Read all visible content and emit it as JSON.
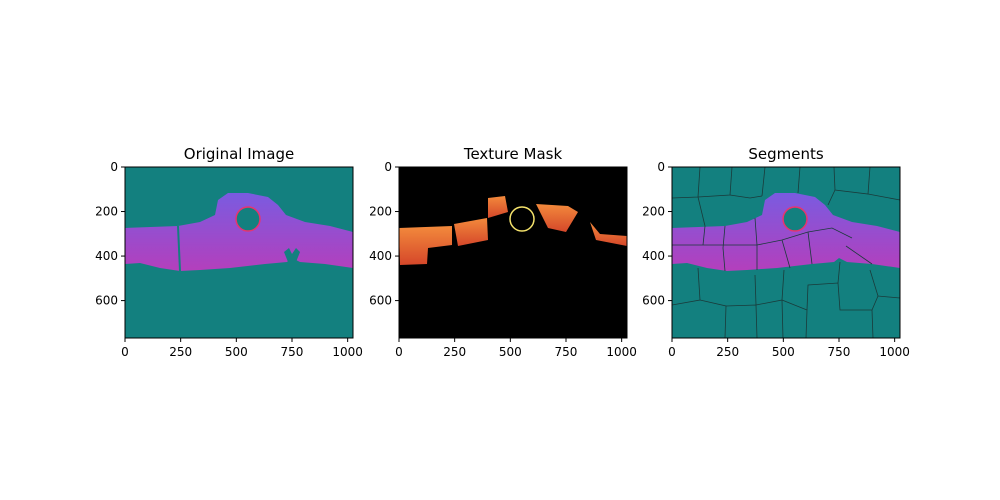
{
  "figure": {
    "background": "#ffffff",
    "panels": [
      {
        "id": "original",
        "title": "Original Image"
      },
      {
        "id": "mask",
        "title": "Texture Mask"
      },
      {
        "id": "segments",
        "title": "Segments"
      }
    ]
  },
  "colors": {
    "teal_background": "#13807f",
    "gradient_top": "#7a5be0",
    "gradient_bottom": "#b43fbc",
    "mask_background": "#000000",
    "mask_texture_light": "#f38a3c",
    "mask_texture_dark": "#c9401f",
    "circle_red": "#e8346e",
    "circle_yellow": "#f4e26b",
    "segment_border": "#1a3a3a"
  },
  "chart_data": [
    {
      "type": "image",
      "title": "Original Image",
      "xlim": [
        0,
        1024
      ],
      "ylim": [
        768,
        0
      ],
      "xticks": [
        0,
        250,
        500,
        750,
        1000
      ],
      "yticks": [
        0,
        200,
        400,
        600
      ],
      "annotations": [
        {
          "shape": "circle",
          "center": [
            551,
            233
          ],
          "radius": 55,
          "color": "#e8346e"
        }
      ]
    },
    {
      "type": "image",
      "title": "Texture Mask",
      "xlim": [
        0,
        1024
      ],
      "ylim": [
        768,
        0
      ],
      "xticks": [
        0,
        250,
        500,
        750,
        1000
      ],
      "yticks": [
        0,
        200,
        400,
        600
      ],
      "annotations": [
        {
          "shape": "circle",
          "center": [
            551,
            233
          ],
          "radius": 55,
          "color": "#f4e26b"
        }
      ]
    },
    {
      "type": "image",
      "title": "Segments",
      "xlim": [
        0,
        1024
      ],
      "ylim": [
        768,
        0
      ],
      "xticks": [
        0,
        250,
        500,
        750,
        1000
      ],
      "yticks": [
        0,
        200,
        400,
        600
      ],
      "annotations": [
        {
          "shape": "circle",
          "center": [
            551,
            233
          ],
          "radius": 55,
          "color": "#e8346e"
        }
      ]
    }
  ]
}
